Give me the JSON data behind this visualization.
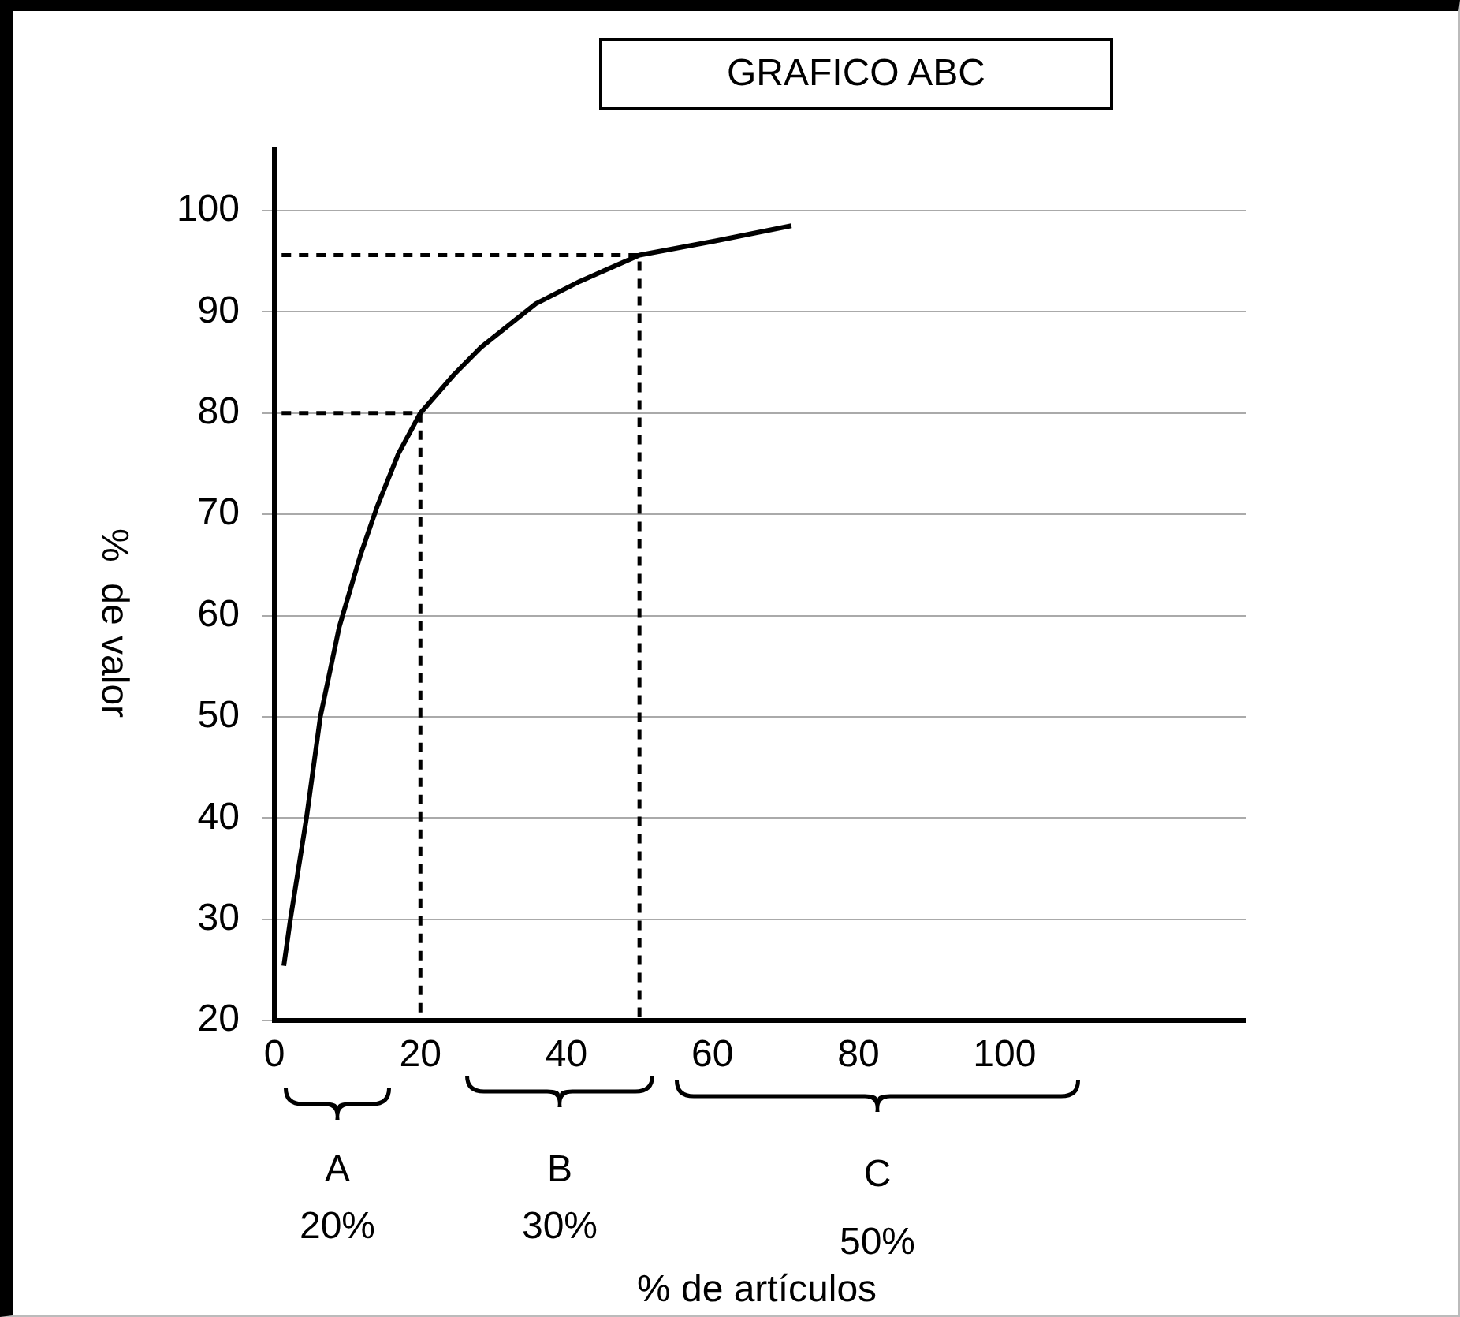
{
  "chart_data": {
    "type": "line",
    "title": "GRAFICO ABC",
    "ylabel": "%  de valor",
    "xlim": [
      0,
      133
    ],
    "xticks": [
      0,
      20,
      40,
      60,
      80,
      100
    ],
    "ylim": [
      20,
      106
    ],
    "yticks": [
      20,
      30,
      40,
      50,
      60,
      70,
      80,
      90,
      100
    ],
    "grid": "y",
    "legend": false,
    "marker": "none",
    "annotations": [
      "A",
      "20%",
      "B",
      "30%",
      "C",
      "50%",
      "% de artículos"
    ],
    "series": [
      {
        "color": "#000000",
        "line_style": "solid",
        "x": [
          1.3,
          2.2,
          4.4,
          6.3,
          8.9,
          11.8,
          14.1,
          17,
          20,
          24.6,
          28.3,
          35.8,
          41.8,
          50,
          60.4,
          70.8
        ],
        "values": [
          25.4,
          30,
          40,
          50,
          58.9,
          66,
          70.8,
          76,
          80,
          83.8,
          86.5,
          90.8,
          93,
          95.6,
          97,
          98.5
        ]
      },
      {
        "color": "#000000",
        "line_style": "dashed",
        "x": [
          1,
          20,
          20
        ],
        "values": [
          80,
          80,
          20
        ]
      },
      {
        "color": "#000000",
        "line_style": "dashed",
        "x": [
          1,
          50,
          50
        ],
        "values": [
          95.6,
          95.6,
          20
        ]
      }
    ]
  }
}
